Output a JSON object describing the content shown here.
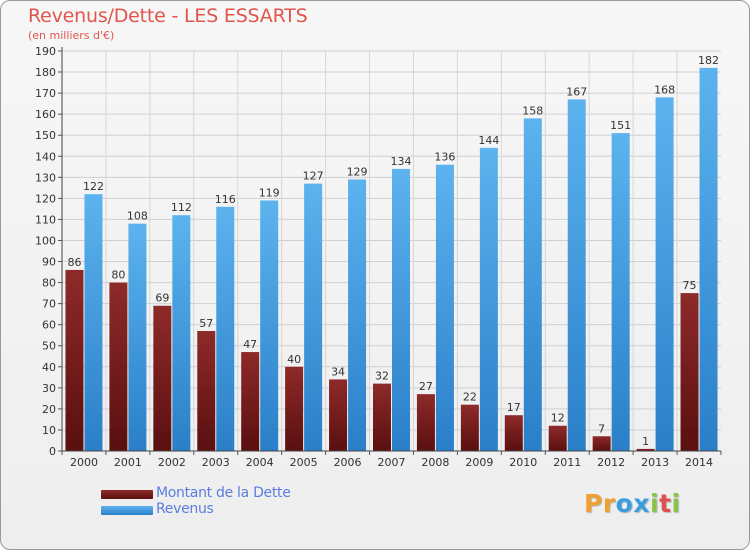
{
  "chart_data": {
    "type": "bar",
    "title": "Revenus/Dette - LES ESSARTS",
    "subtitle": "(en milliers d'€)",
    "categories": [
      "2000",
      "2001",
      "2002",
      "2003",
      "2004",
      "2005",
      "2006",
      "2007",
      "2008",
      "2009",
      "2010",
      "2011",
      "2012",
      "2013",
      "2014"
    ],
    "series": [
      {
        "name": "Montant de la Dette",
        "color": "#7a2020",
        "values": [
          86,
          80,
          69,
          57,
          47,
          40,
          34,
          32,
          27,
          22,
          17,
          12,
          7,
          1,
          75
        ]
      },
      {
        "name": "Revenus",
        "color": "#4fa7e6",
        "values": [
          122,
          108,
          112,
          116,
          119,
          127,
          129,
          134,
          136,
          144,
          158,
          167,
          151,
          168,
          182
        ]
      }
    ],
    "ylim": [
      0,
      190
    ],
    "yticks": [
      0,
      10,
      20,
      30,
      40,
      50,
      60,
      70,
      80,
      90,
      100,
      110,
      120,
      130,
      140,
      150,
      160,
      170,
      180,
      190
    ],
    "grid": true,
    "legend_position": "bottom-left"
  },
  "brand": {
    "letters": [
      "P",
      "r",
      "o",
      "x",
      "i",
      "t",
      "i"
    ],
    "colors": [
      "#f0a030",
      "#f0a030",
      "#3a9de0",
      "#3a9de0",
      "#8bc34a",
      "#e05050",
      "#8bc34a"
    ]
  }
}
